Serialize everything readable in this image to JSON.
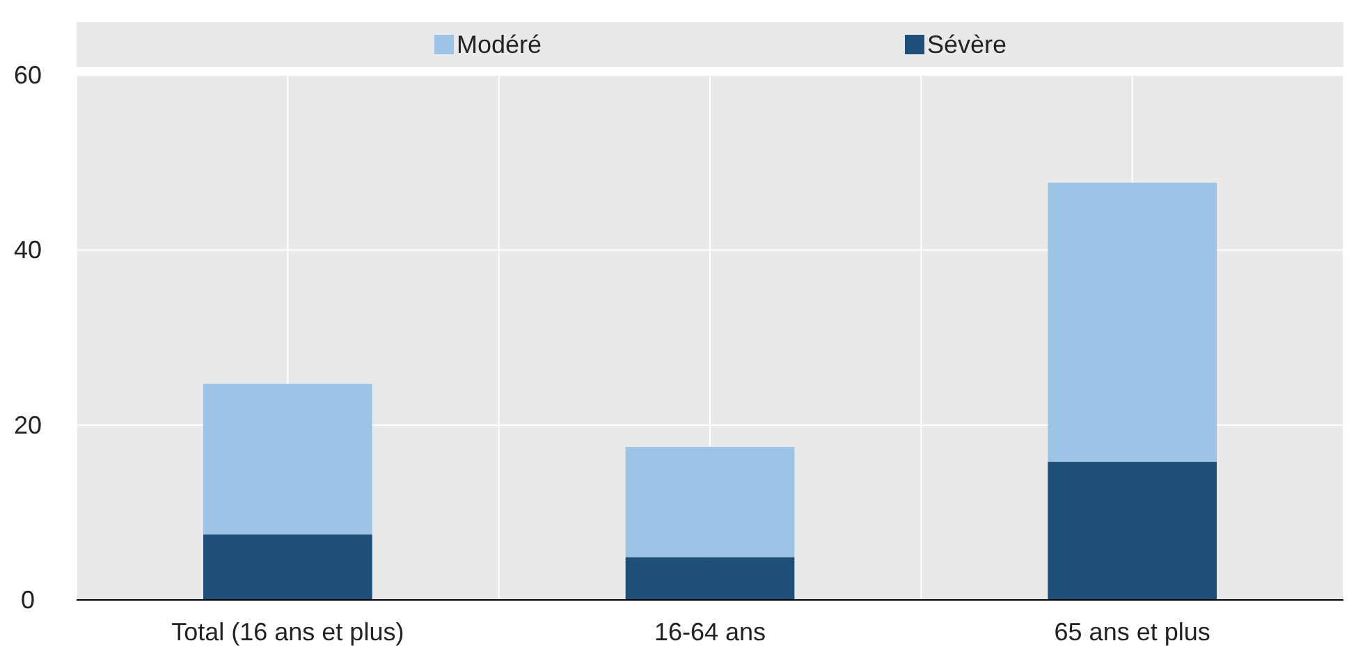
{
  "chart_data": {
    "type": "bar",
    "stacked": true,
    "categories": [
      "Total (16 ans et plus)",
      "16-64 ans",
      "65 ans et plus"
    ],
    "series": [
      {
        "name": "Sévère",
        "color": "#1f4e79",
        "values": [
          7.5,
          4.9,
          15.8
        ]
      },
      {
        "name": "Modéré",
        "color": "#9dc3e6",
        "values": [
          17.2,
          12.6,
          31.9
        ]
      }
    ],
    "ylim": [
      0,
      60
    ],
    "yticks": [
      0,
      20,
      40,
      60
    ],
    "grid": true,
    "legend": "top"
  }
}
